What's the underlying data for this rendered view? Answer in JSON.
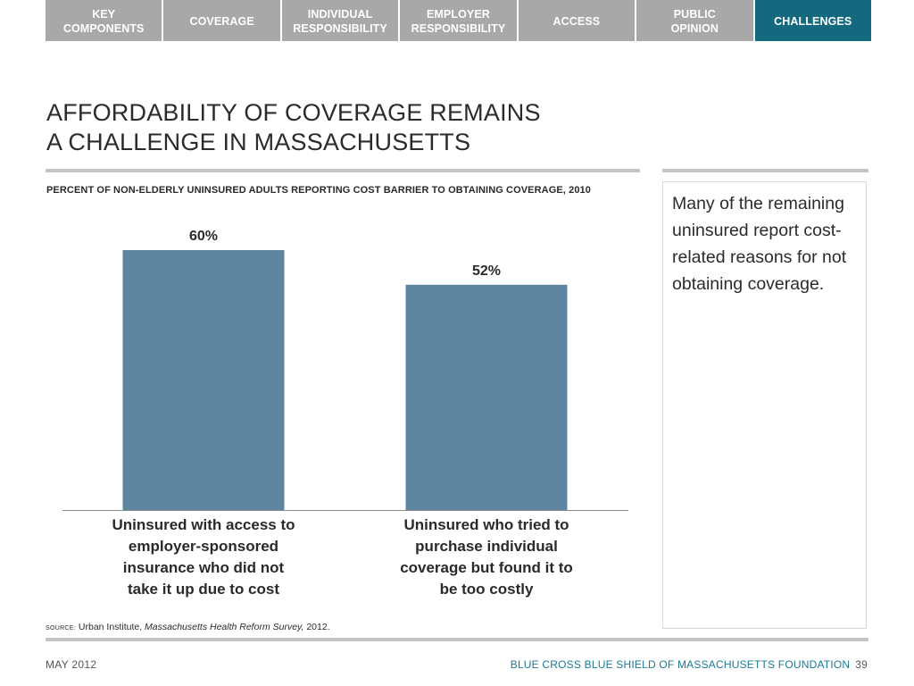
{
  "nav": {
    "tabs": [
      {
        "label": "KEY\nCOMPONENTS",
        "active": false
      },
      {
        "label": "COVERAGE",
        "active": false
      },
      {
        "label": "INDIVIDUAL\nRESPONSIBILITY",
        "active": false
      },
      {
        "label": "EMPLOYER\nRESPONSIBILITY",
        "active": false
      },
      {
        "label": "ACCESS",
        "active": false
      },
      {
        "label": "PUBLIC\nOPINION",
        "active": false
      },
      {
        "label": "CHALLENGES",
        "active": true
      }
    ]
  },
  "title": "AFFORDABILITY OF COVERAGE REMAINS\nA CHALLENGE IN MASSACHUSETTS",
  "side_note": "Many of the remaining uninsured report cost-related reasons for not obtaining coverage.",
  "source": {
    "tag": "SOURCE:",
    "text_before": "Urban Institute,",
    "italic": "Massachusetts Health Reform Survey,",
    "text_after": "2012."
  },
  "footer": {
    "date": "MAY 2012",
    "organization": "BLUE CROSS BLUE SHIELD OF MASSACHUSETTS FOUNDATION",
    "page": "39"
  },
  "colors": {
    "bar": "#5f86a0",
    "active_tab": "#15697e",
    "inactive_tab": "#a8a8a8",
    "footer_org": "#1b7a96"
  },
  "chart_data": {
    "type": "bar",
    "title": "PERCENT OF NON-ELDERLY UNINSURED ADULTS REPORTING COST BARRIER TO OBTAINING COVERAGE, 2010",
    "categories": [
      "Uninsured with access to\nemployer-sponsored\ninsurance who did not\ntake it up due to cost",
      "Uninsured who tried to\npurchase individual\ncoverage but found it to\nbe too costly"
    ],
    "values": [
      60,
      52
    ],
    "value_labels": [
      "60%",
      "52%"
    ],
    "unit": "%",
    "ylim": [
      0,
      100
    ],
    "grid": false,
    "legend": "none"
  }
}
